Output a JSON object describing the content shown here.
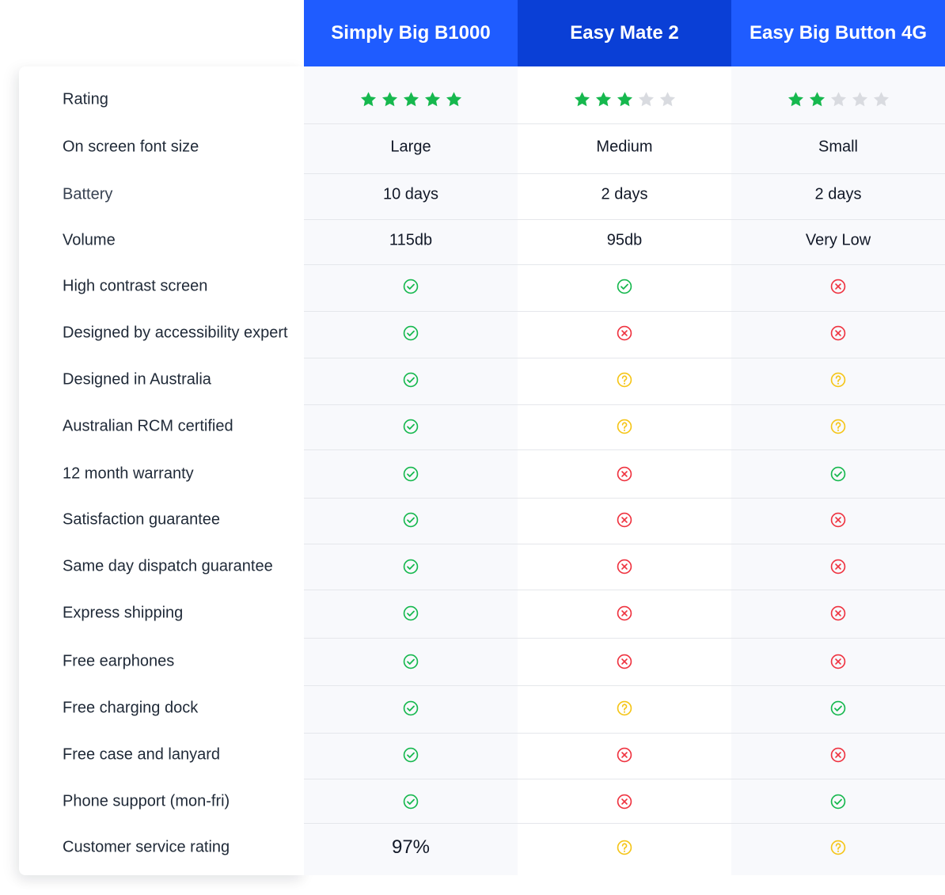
{
  "colors": {
    "header_primary": "#1f5cff",
    "header_featured": "#0a3fd6",
    "star_filled": "#16b84e",
    "star_empty": "#d9dbe0",
    "yes": "#16b84e",
    "no": "#ef3340",
    "unknown": "#f5c518"
  },
  "products": [
    {
      "name": "Simply Big B1000",
      "featured": false
    },
    {
      "name": "Easy Mate 2",
      "featured": true
    },
    {
      "name": "Easy Big Button 4G",
      "featured": false
    }
  ],
  "rows": [
    {
      "label": "Rating",
      "values": [
        {
          "type": "stars",
          "value": 5,
          "max": 5
        },
        {
          "type": "stars",
          "value": 3,
          "max": 5
        },
        {
          "type": "stars",
          "value": 2,
          "max": 5
        }
      ]
    },
    {
      "label": "On screen font size",
      "values": [
        {
          "type": "text",
          "value": "Large"
        },
        {
          "type": "text",
          "value": "Medium"
        },
        {
          "type": "text",
          "value": "Small"
        }
      ]
    },
    {
      "label": "Battery",
      "values": [
        {
          "type": "text",
          "value": "10 days"
        },
        {
          "type": "text",
          "value": "2 days"
        },
        {
          "type": "text",
          "value": "2 days"
        }
      ]
    },
    {
      "label": "Volume",
      "values": [
        {
          "type": "text",
          "value": "115db"
        },
        {
          "type": "text",
          "value": "95db"
        },
        {
          "type": "text",
          "value": "Very Low"
        }
      ]
    },
    {
      "label": "High contrast screen",
      "values": [
        {
          "type": "status",
          "value": "yes"
        },
        {
          "type": "status",
          "value": "yes"
        },
        {
          "type": "status",
          "value": "no"
        }
      ]
    },
    {
      "label": "Designed by accessibility expert",
      "values": [
        {
          "type": "status",
          "value": "yes"
        },
        {
          "type": "status",
          "value": "no"
        },
        {
          "type": "status",
          "value": "no"
        }
      ]
    },
    {
      "label": "Designed in Australia",
      "values": [
        {
          "type": "status",
          "value": "yes"
        },
        {
          "type": "status",
          "value": "unknown"
        },
        {
          "type": "status",
          "value": "unknown"
        }
      ]
    },
    {
      "label": "Australian RCM certified",
      "values": [
        {
          "type": "status",
          "value": "yes"
        },
        {
          "type": "status",
          "value": "unknown"
        },
        {
          "type": "status",
          "value": "unknown"
        }
      ]
    },
    {
      "label": "12 month warranty",
      "values": [
        {
          "type": "status",
          "value": "yes"
        },
        {
          "type": "status",
          "value": "no"
        },
        {
          "type": "status",
          "value": "yes"
        }
      ]
    },
    {
      "label": "Satisfaction guarantee",
      "values": [
        {
          "type": "status",
          "value": "yes"
        },
        {
          "type": "status",
          "value": "no"
        },
        {
          "type": "status",
          "value": "no"
        }
      ]
    },
    {
      "label": "Same day dispatch guarantee",
      "values": [
        {
          "type": "status",
          "value": "yes"
        },
        {
          "type": "status",
          "value": "no"
        },
        {
          "type": "status",
          "value": "no"
        }
      ]
    },
    {
      "label": "Express shipping",
      "values": [
        {
          "type": "status",
          "value": "yes"
        },
        {
          "type": "status",
          "value": "no"
        },
        {
          "type": "status",
          "value": "no"
        }
      ]
    },
    {
      "label": "Free earphones",
      "values": [
        {
          "type": "status",
          "value": "yes"
        },
        {
          "type": "status",
          "value": "no"
        },
        {
          "type": "status",
          "value": "no"
        }
      ]
    },
    {
      "label": "Free charging dock",
      "values": [
        {
          "type": "status",
          "value": "yes"
        },
        {
          "type": "status",
          "value": "unknown"
        },
        {
          "type": "status",
          "value": "yes"
        }
      ]
    },
    {
      "label": "Free case and lanyard",
      "values": [
        {
          "type": "status",
          "value": "yes"
        },
        {
          "type": "status",
          "value": "no"
        },
        {
          "type": "status",
          "value": "no"
        }
      ]
    },
    {
      "label": "Phone support (mon-fri)",
      "values": [
        {
          "type": "status",
          "value": "yes"
        },
        {
          "type": "status",
          "value": "no"
        },
        {
          "type": "status",
          "value": "yes"
        }
      ]
    },
    {
      "label": "Customer service rating",
      "values": [
        {
          "type": "text",
          "value": "97%"
        },
        {
          "type": "status",
          "value": "unknown"
        },
        {
          "type": "status",
          "value": "unknown"
        }
      ]
    }
  ]
}
